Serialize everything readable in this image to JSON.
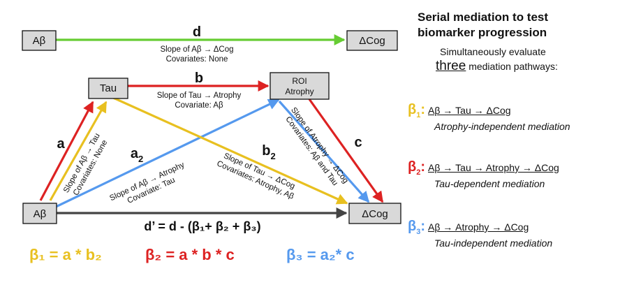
{
  "nodes": {
    "ab_top": "Aβ",
    "dcog_top": "ΔCog",
    "tau": "Tau",
    "roi_line1": "ROI",
    "roi_line2": "Atrophy",
    "ab_bottom": "Aβ",
    "dcog_bottom": "ΔCog"
  },
  "paths": {
    "d": {
      "label": "d",
      "line1": "Slope of Aβ → ΔCog",
      "line2": "Covariates: None",
      "color": "#66cc33"
    },
    "b": {
      "label": "b",
      "line1": "Slope of Tau → Atrophy",
      "line2": "Covariate: Aβ",
      "color": "#dd2222"
    },
    "a": {
      "label": "a",
      "line1": "Slope of Aβ → Tau",
      "line2": "Covariates: None",
      "color": "#dd2222"
    },
    "a2": {
      "label": "a",
      "sub": "2",
      "line1": "Slope of Aβ → Atrophy",
      "line2": "Covariate: Tau",
      "color": "#5599ee"
    },
    "b2": {
      "label": "b",
      "sub": "2",
      "line1": "Slope of Tau → ΔCog",
      "line2": "Covariates: Atrophy, Aβ",
      "color": "#e8c020"
    },
    "c": {
      "label": "c",
      "line1": "Slope of Atrophy → ΔCog",
      "line2": "Covariates: Aβ and Tau",
      "color": "#dd2222"
    },
    "dprime": {
      "text": "d’ = d - (β₁+ β₂ + β₃)",
      "color": "#444444"
    }
  },
  "equations": {
    "beta1": "β₁ = a * b₂",
    "beta2": "β₂ = a * b * c",
    "beta3": "β₃ = a₂* c"
  },
  "colors": {
    "yellow": "#e8c020",
    "red": "#dd2222",
    "blue": "#5599ee",
    "green": "#66cc33",
    "gray": "#444444"
  },
  "panel": {
    "title_line1": "Serial mediation to test",
    "title_line2": "biomarker progression",
    "sub1": "Simultaneously evaluate",
    "three": "three",
    "sub2_rest": " mediation pathways:",
    "pathways": [
      {
        "sym": "β",
        "sub": "1",
        "path": "Aβ → Tau → ΔCog",
        "desc": "Atrophy-independent mediation"
      },
      {
        "sym": "β",
        "sub": "2",
        "path": "Aβ → Tau → Atrophy → ΔCog",
        "desc": "Tau-dependent mediation"
      },
      {
        "sym": "β",
        "sub": "3",
        "path": "Aβ → Atrophy → ΔCog",
        "desc": "Tau-independent mediation"
      }
    ]
  }
}
